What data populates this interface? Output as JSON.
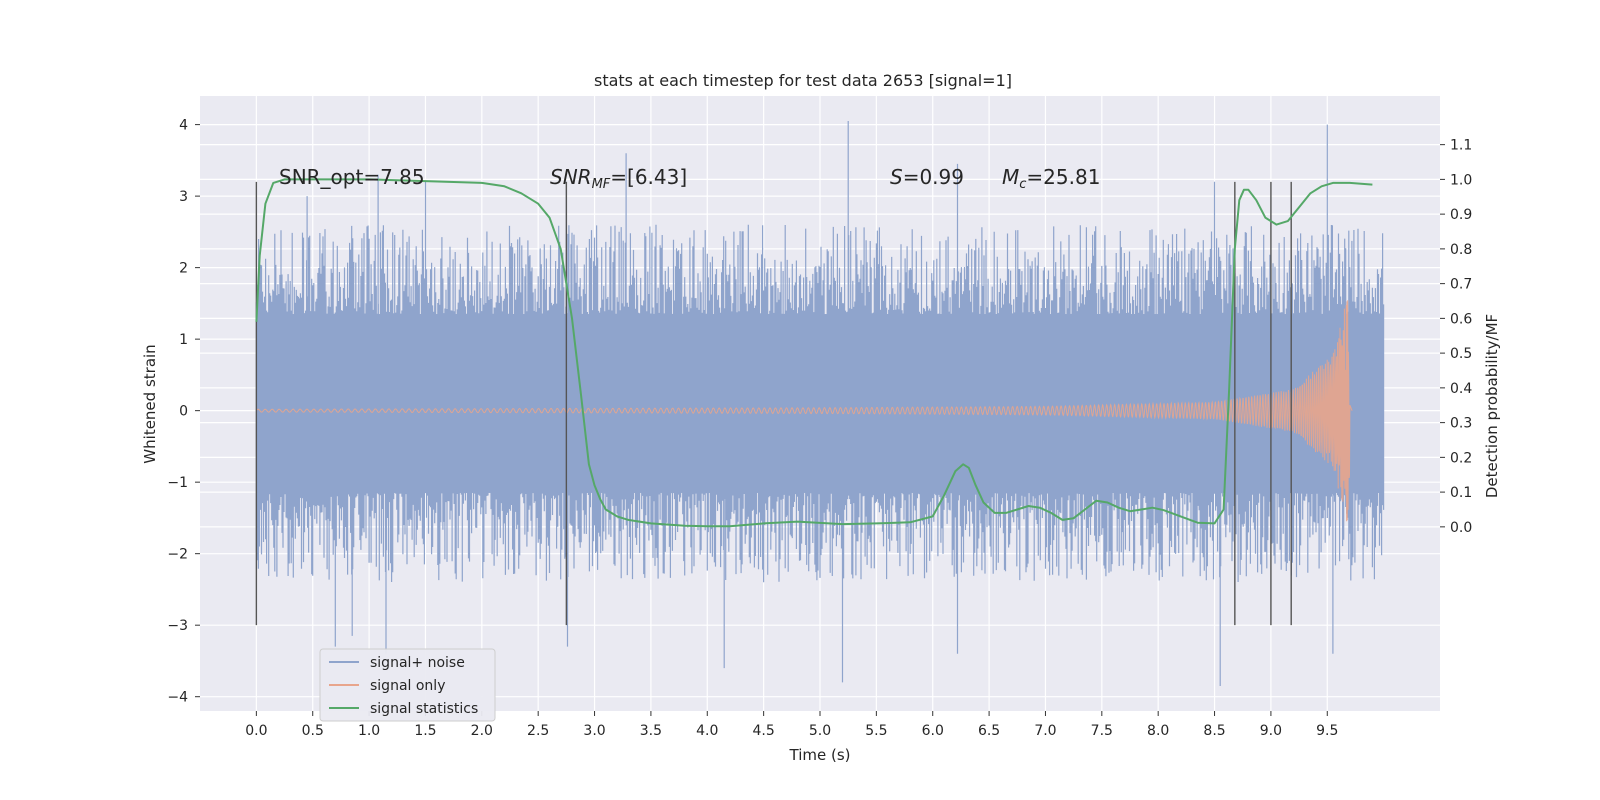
{
  "chart_data": {
    "type": "line",
    "title": "stats at each timestep for test data 2653 [signal=1]",
    "xlabel": "Time (s)",
    "ylabel": "Whitened strain",
    "ylabel_right": "Detection probability/MF",
    "xlim": [
      -0.5,
      10.5
    ],
    "ylim": [
      -4.2,
      4.4
    ],
    "ylim_right": [
      -0.53,
      1.24
    ],
    "x_ticks": [
      "0.0",
      "0.5",
      "1.0",
      "1.5",
      "2.0",
      "2.5",
      "3.0",
      "3.5",
      "4.0",
      "4.5",
      "5.0",
      "5.5",
      "6.0",
      "6.5",
      "7.0",
      "7.5",
      "8.0",
      "8.5",
      "9.0",
      "9.5"
    ],
    "y_ticks": [
      "4",
      "3",
      "2",
      "1",
      "0",
      "−1",
      "−2",
      "−3",
      "−4"
    ],
    "y_ticks_right": [
      "1.1",
      "1.0",
      "0.9",
      "0.8",
      "0.7",
      "0.6",
      "0.5",
      "0.4",
      "0.3",
      "0.2",
      "0.1",
      "0.0"
    ],
    "grid": true,
    "legend_position": "lower-left",
    "annotations": {
      "snr_opt": "SNR_opt=7.85",
      "snr_mf_main": "SNR",
      "snr_mf_sub": "MF",
      "snr_mf_rest": "=[6.43]",
      "s_italic": "S",
      "s_rest": "=0.99",
      "mc_main": "M",
      "mc_sub": "c",
      "mc_rest": "=25.81"
    },
    "vertical_markers": [
      0.0,
      2.75,
      8.68,
      9.0,
      9.18
    ],
    "vertical_marker_range": [
      -3.0,
      3.2
    ],
    "series": [
      {
        "name": "signal+ noise",
        "color": "#8fa4cc",
        "x_range": [
          0.0,
          10.0
        ],
        "band_inner": [
          -1.15,
          1.35
        ],
        "spread": [
          -2.4,
          2.6
        ],
        "peaks": [
          [
            0.02,
            2.4
          ],
          [
            0.45,
            3.0
          ],
          [
            1.08,
            3.3
          ],
          [
            1.5,
            3.2
          ],
          [
            2.75,
            3.2
          ],
          [
            3.28,
            3.6
          ],
          [
            5.25,
            4.05
          ],
          [
            6.22,
            3.45
          ],
          [
            8.5,
            3.2
          ],
          [
            9.5,
            4.0
          ],
          [
            0.7,
            -3.3
          ],
          [
            0.85,
            -3.15
          ],
          [
            1.15,
            -3.4
          ],
          [
            2.76,
            -3.3
          ],
          [
            4.15,
            -3.6
          ],
          [
            5.2,
            -3.8
          ],
          [
            6.22,
            -3.4
          ],
          [
            8.55,
            -3.85
          ],
          [
            9.55,
            -3.4
          ]
        ]
      },
      {
        "name": "signal only",
        "color": "#e8a58c",
        "x_range": [
          0.0,
          9.72
        ],
        "envelope": [
          [
            0.0,
            0.02
          ],
          [
            5.0,
            0.04
          ],
          [
            7.0,
            0.06
          ],
          [
            8.5,
            0.12
          ],
          [
            9.2,
            0.3
          ],
          [
            9.55,
            0.8
          ],
          [
            9.68,
            1.6
          ],
          [
            9.72,
            0.0
          ]
        ],
        "merger_time": 9.68
      },
      {
        "name": "signal statistics",
        "color": "#55a868",
        "axis": "right",
        "x": [
          0.0,
          0.03,
          0.08,
          0.15,
          0.25,
          0.4,
          1.0,
          1.5,
          2.0,
          2.2,
          2.35,
          2.5,
          2.6,
          2.7,
          2.8,
          2.88,
          2.95,
          3.0,
          3.05,
          3.1,
          3.2,
          3.3,
          3.5,
          3.8,
          4.0,
          4.2,
          4.5,
          4.8,
          5.2,
          5.5,
          5.8,
          6.0,
          6.1,
          6.2,
          6.27,
          6.32,
          6.38,
          6.45,
          6.55,
          6.65,
          6.75,
          6.85,
          6.95,
          7.05,
          7.15,
          7.25,
          7.35,
          7.45,
          7.55,
          7.65,
          7.75,
          7.85,
          7.95,
          8.05,
          8.2,
          8.35,
          8.5,
          8.58,
          8.63,
          8.68,
          8.72,
          8.76,
          8.8,
          8.87,
          8.95,
          9.05,
          9.15,
          9.25,
          9.35,
          9.45,
          9.55,
          9.7,
          9.9
        ],
        "y": [
          0.59,
          0.78,
          0.93,
          0.99,
          1.0,
          1.0,
          1.0,
          0.995,
          0.99,
          0.98,
          0.96,
          0.93,
          0.89,
          0.8,
          0.6,
          0.38,
          0.18,
          0.12,
          0.08,
          0.05,
          0.03,
          0.02,
          0.01,
          0.003,
          0.002,
          0.002,
          0.01,
          0.015,
          0.008,
          0.01,
          0.013,
          0.03,
          0.09,
          0.16,
          0.18,
          0.17,
          0.12,
          0.07,
          0.04,
          0.04,
          0.05,
          0.06,
          0.055,
          0.04,
          0.02,
          0.025,
          0.05,
          0.075,
          0.07,
          0.055,
          0.045,
          0.05,
          0.055,
          0.048,
          0.03,
          0.012,
          0.01,
          0.05,
          0.4,
          0.8,
          0.94,
          0.97,
          0.97,
          0.94,
          0.89,
          0.87,
          0.88,
          0.92,
          0.96,
          0.98,
          0.99,
          0.99,
          0.985
        ]
      }
    ]
  }
}
